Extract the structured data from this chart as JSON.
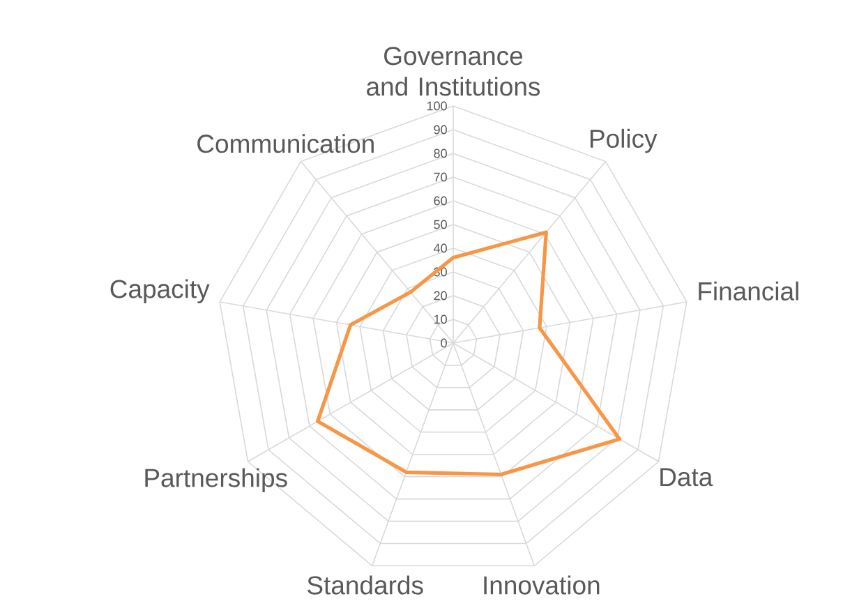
{
  "chart_data": {
    "type": "radar",
    "categories": [
      "Governance and Institutions",
      "Policy",
      "Financial",
      "Data",
      "Innovation",
      "Standards",
      "Partnerships",
      "Capacity",
      "Communication"
    ],
    "series": [
      {
        "color": "#f79646",
        "values": [
          36,
          61,
          37,
          81,
          59,
          58,
          66,
          44,
          28
        ]
      }
    ],
    "ylim": [
      0,
      100
    ],
    "yticks": [
      0,
      10,
      20,
      30,
      40,
      50,
      60,
      70,
      80,
      90,
      100
    ],
    "grid": true,
    "marker": "none",
    "line_style": "solid"
  }
}
